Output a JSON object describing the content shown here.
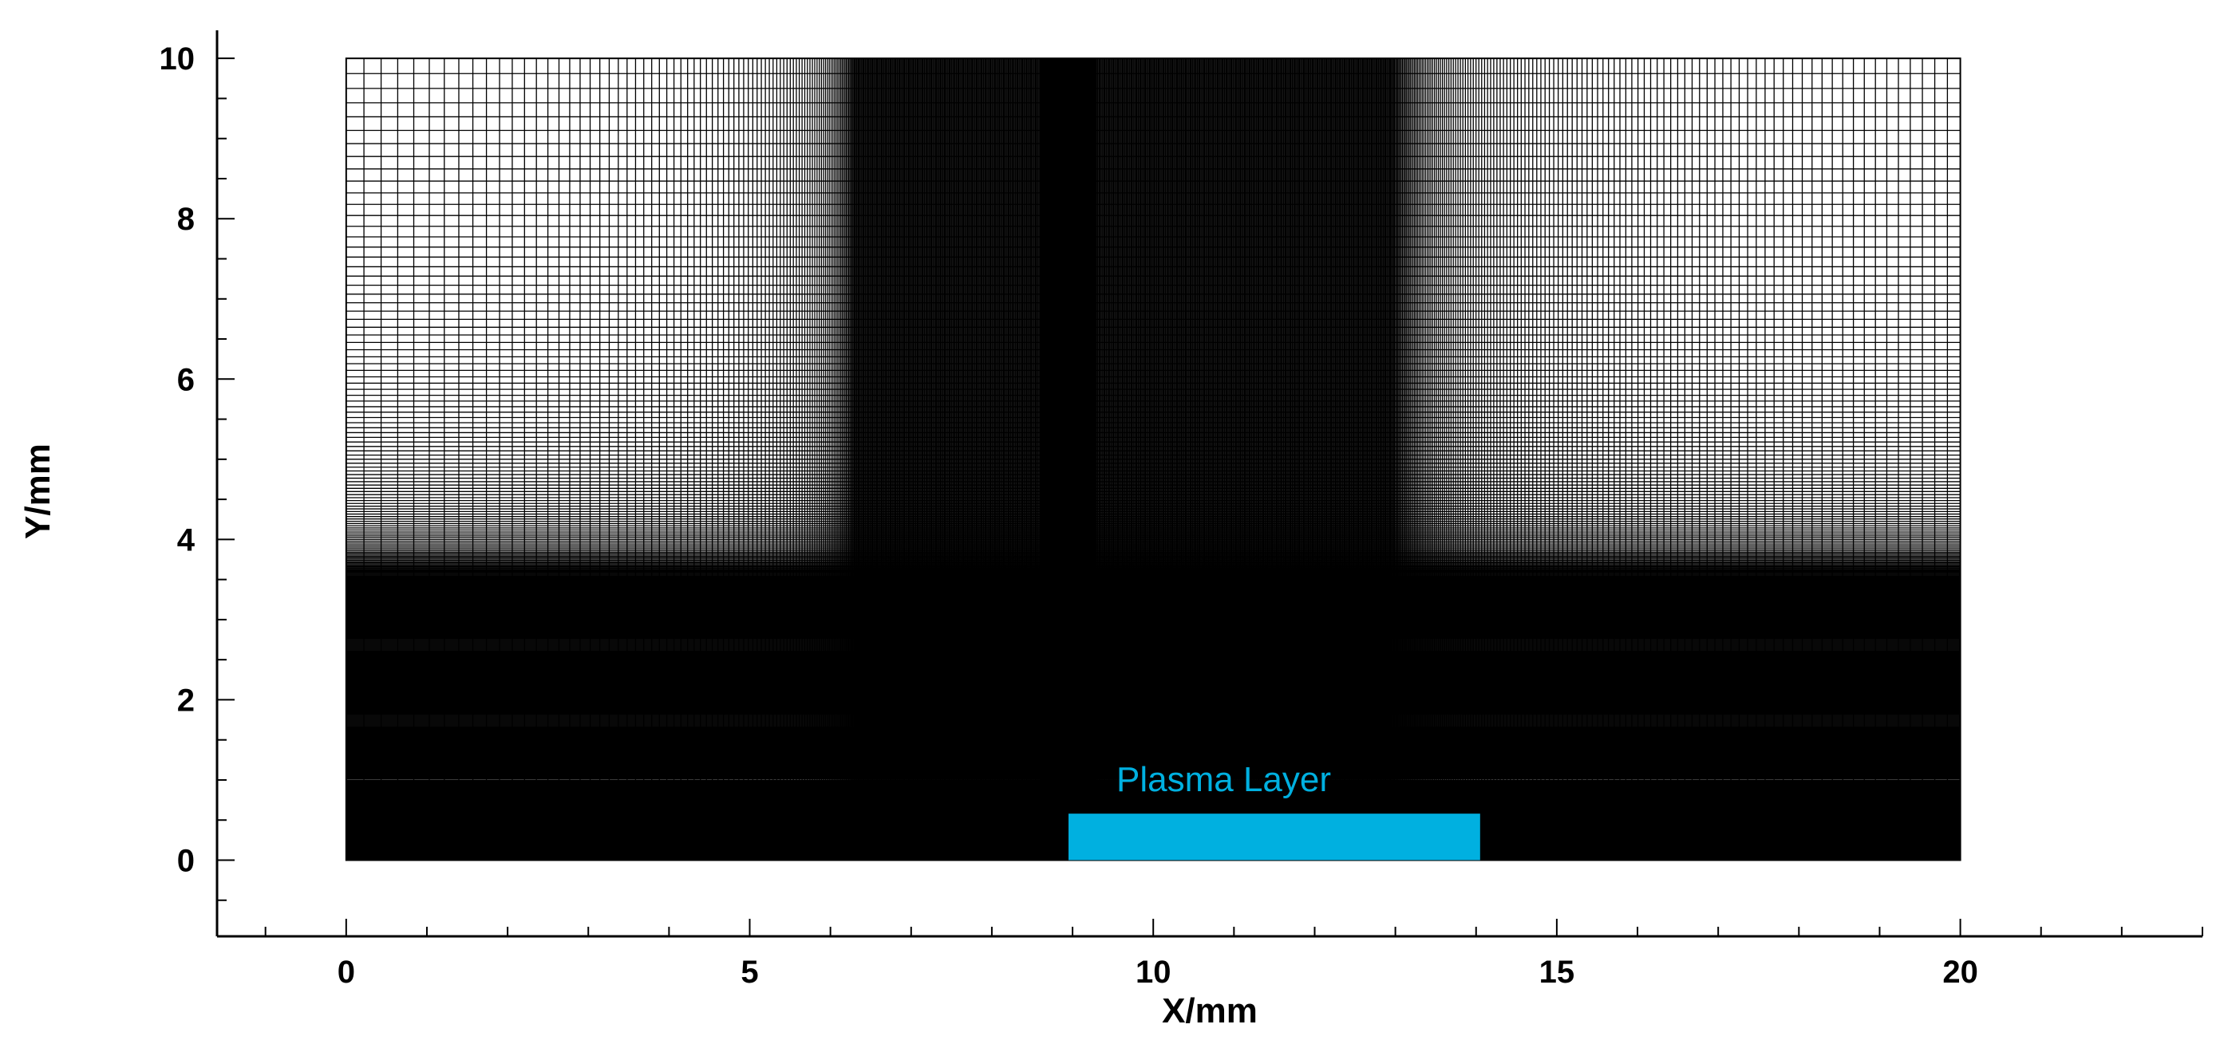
{
  "figure": {
    "x_axis": {
      "label": "X/mm",
      "range": [
        -1.6,
        23.0
      ],
      "major_ticks": [
        0,
        5,
        10,
        15,
        20
      ],
      "major_tick_labels": [
        "0",
        "5",
        "10",
        "15",
        "20"
      ],
      "minor_step": 1
    },
    "y_axis": {
      "label": "Y/mm",
      "range": [
        -0.95,
        10.35
      ],
      "major_ticks": [
        0,
        2,
        4,
        6,
        8,
        10
      ],
      "major_tick_labels": [
        "0",
        "2",
        "4",
        "6",
        "8",
        "10"
      ],
      "minor_step": 0.5
    },
    "mesh": {
      "x_range": [
        0,
        20
      ],
      "y_range": [
        0,
        10
      ],
      "dense_column_x": [
        8.6,
        9.3
      ],
      "dense_bottom_layer_y": [
        0,
        1.0
      ],
      "colors": {
        "line": "#000000",
        "background": "#ffffff",
        "dense": "#000000"
      }
    },
    "plasma_layer": {
      "label": "Plasma Layer",
      "x_range": [
        8.95,
        14.05
      ],
      "y_range": [
        0,
        0.58
      ],
      "color": "#00b0e0"
    }
  }
}
